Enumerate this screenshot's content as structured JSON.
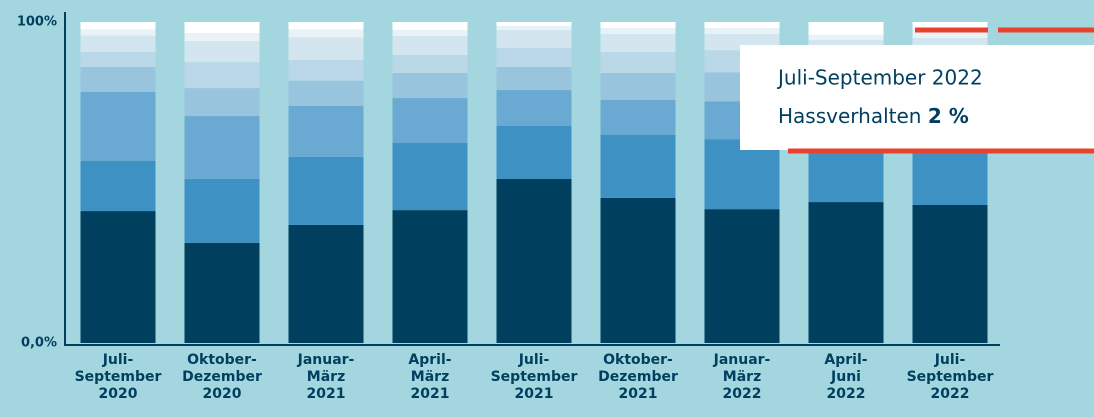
{
  "chart_data": {
    "type": "stacked_bar",
    "categories": [
      [
        "Juli-",
        "September",
        "2020"
      ],
      [
        "Oktober-",
        "Dezember",
        "2020"
      ],
      [
        "Januar-",
        "März",
        "2021"
      ],
      [
        "April-",
        "März",
        "2021"
      ],
      [
        "Juli-",
        "September",
        "2021"
      ],
      [
        "Oktober-",
        "Dezember",
        "2021"
      ],
      [
        "Januar-",
        "März",
        "2022"
      ],
      [
        "April-",
        "Juni",
        "2022"
      ],
      [
        "Juli-",
        "September",
        "2022"
      ]
    ],
    "series": [
      {
        "color": "#013f5f",
        "values": [
          41.1,
          31.2,
          36.8,
          41.4,
          51.1,
          45.2,
          41.7,
          43.9,
          43.0
        ]
      },
      {
        "color": "#3d92c3",
        "values": [
          15.6,
          19.9,
          21.2,
          20.9,
          16.5,
          19.6,
          21.8,
          18.7,
          20.0
        ]
      },
      {
        "color": "#6aaad2",
        "values": [
          21.5,
          19.6,
          15.9,
          14.0,
          11.2,
          10.9,
          11.8,
          12.5,
          13.0
        ]
      },
      {
        "color": "#98c4de",
        "values": [
          7.8,
          8.7,
          7.8,
          7.8,
          7.2,
          8.4,
          9.0,
          7.8,
          8.0
        ]
      },
      {
        "color": "#bad8e8",
        "values": [
          4.7,
          8.1,
          6.5,
          5.6,
          5.9,
          6.5,
          6.9,
          6.2,
          6.0
        ]
      },
      {
        "color": "#d3e6f0",
        "values": [
          5.0,
          6.5,
          6.9,
          5.9,
          5.6,
          5.6,
          5.0,
          5.3,
          5.0
        ]
      },
      {
        "color": "#e8f2f7",
        "values": [
          1.9,
          2.5,
          2.5,
          1.9,
          1.2,
          1.9,
          1.9,
          1.6,
          3.0
        ]
      },
      {
        "color": "#ffffff",
        "values": [
          2.4,
          3.5,
          2.4,
          2.5,
          1.3,
          1.9,
          1.9,
          4.0,
          2.0
        ]
      }
    ],
    "ylim": [
      0,
      100
    ],
    "yticks": [
      {
        "value": 0,
        "label": "0,0%"
      },
      {
        "value": 100,
        "label": "100%"
      }
    ],
    "tooltip": {
      "title": "Juli-September 2022",
      "label": "Hassverhalten",
      "value": "2 %"
    }
  }
}
